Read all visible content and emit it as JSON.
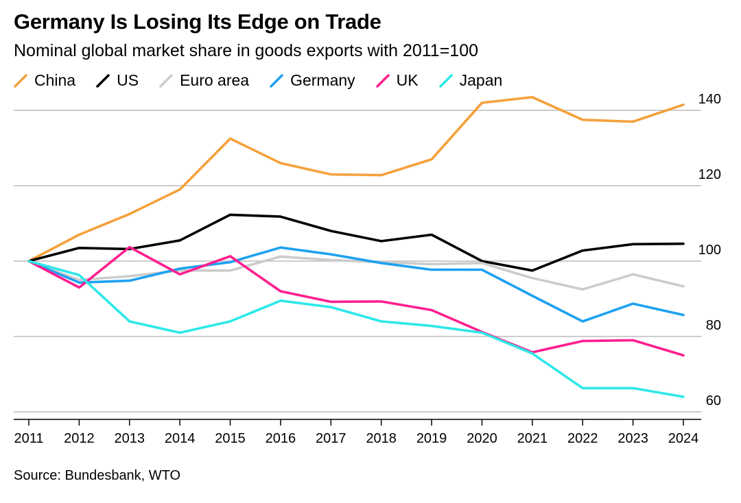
{
  "title": "Germany Is Losing Its Edge on Trade",
  "subtitle": "Nominal global market share in goods exports with 2011=100",
  "source": "Source: Bundesbank, WTO",
  "chart_data": {
    "type": "line",
    "title": "Germany Is Losing Its Edge on Trade",
    "subtitle": "Nominal global market share in goods exports with 2011=100",
    "x": [
      2011,
      2012,
      2013,
      2014,
      2015,
      2016,
      2017,
      2018,
      2019,
      2020,
      2021,
      2022,
      2023,
      2024
    ],
    "ylim": [
      58,
      142
    ],
    "yticks": [
      60,
      80,
      100,
      120,
      140
    ],
    "y_axis_position": "right",
    "grid": true,
    "legend_position": "top-left",
    "series": [
      {
        "name": "China",
        "color": "#f5a13c",
        "values": [
          100,
          107,
          112.5,
          119,
          132.5,
          126,
          123,
          122.8,
          127,
          142,
          143.5,
          137.5,
          137,
          141.5
        ]
      },
      {
        "name": "US",
        "color": "#000000",
        "values": [
          100,
          103.5,
          103.2,
          105.5,
          112.3,
          111.8,
          108,
          105.3,
          107,
          100,
          97.5,
          102.8,
          104.5,
          104.6
        ]
      },
      {
        "name": "Euro area",
        "color": "#cccccc",
        "values": [
          100,
          95,
          96,
          97.5,
          97.5,
          101.2,
          100.3,
          99.7,
          99.2,
          99.5,
          95.5,
          92.5,
          96.5,
          93.3
        ]
      },
      {
        "name": "Germany",
        "color": "#1da1f2",
        "values": [
          100,
          94.3,
          94.8,
          98,
          99.7,
          103.6,
          101.8,
          99.5,
          97.7,
          97.7,
          90.8,
          84,
          88.7,
          85.7
        ]
      },
      {
        "name": "UK",
        "color": "#ff1f8e",
        "values": [
          100,
          93,
          103.7,
          96.5,
          101.3,
          92,
          89.2,
          89.3,
          87,
          81.2,
          75.8,
          78.8,
          79,
          75
        ]
      },
      {
        "name": "Japan",
        "color": "#2ee8e8",
        "values": [
          100,
          96.3,
          84,
          81,
          84,
          89.5,
          87.8,
          84,
          82.8,
          81,
          75.5,
          66.3,
          66.3,
          64
        ]
      }
    ]
  }
}
